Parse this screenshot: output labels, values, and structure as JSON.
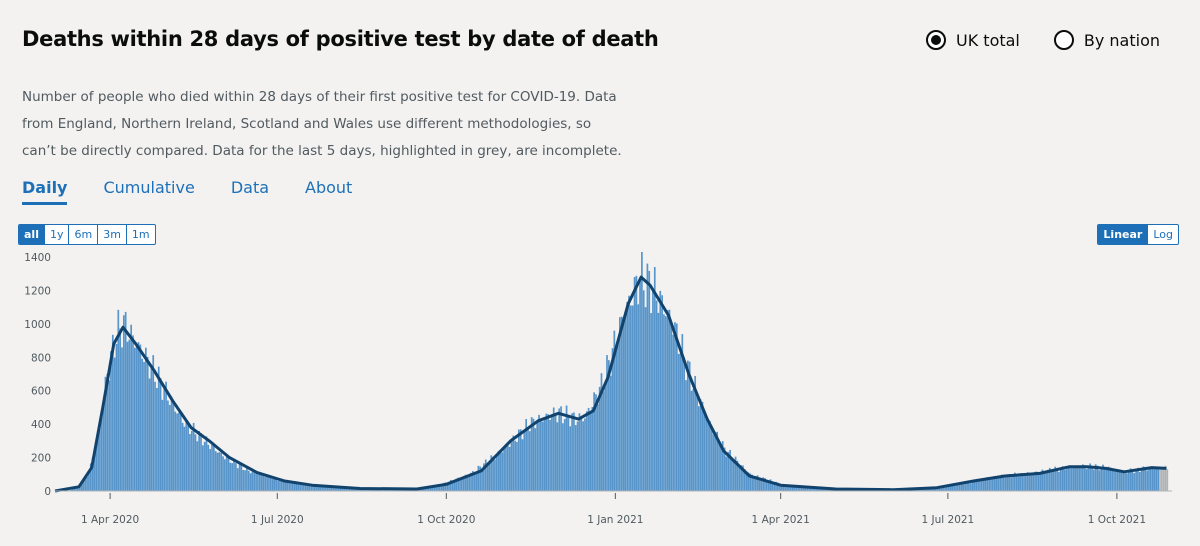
{
  "header": {
    "title": "Deaths within 28 days of positive test by date of death",
    "radios": [
      {
        "label": "UK total",
        "selected": true
      },
      {
        "label": "By nation",
        "selected": false
      }
    ]
  },
  "description": {
    "line1": "Number of people who died within 28 days of their first positive test for COVID-19. Data",
    "line2": "from England, Northern Ireland, Scotland and Wales use different methodologies, so",
    "line3": "can’t be directly compared. Data for the last 5 days, highlighted in grey, are incomplete."
  },
  "tabs": [
    {
      "label": "Daily",
      "active": true
    },
    {
      "label": "Cumulative",
      "active": false
    },
    {
      "label": "Data",
      "active": false
    },
    {
      "label": "About",
      "active": false
    }
  ],
  "range_buttons": [
    {
      "label": "all",
      "active": true
    },
    {
      "label": "1y",
      "active": false
    },
    {
      "label": "6m",
      "active": false
    },
    {
      "label": "3m",
      "active": false
    },
    {
      "label": "1m",
      "active": false
    }
  ],
  "scale_buttons": [
    {
      "label": "Linear",
      "active": true
    },
    {
      "label": "Log",
      "active": false
    }
  ],
  "colors": {
    "bar": "#5694ca",
    "line": "#12436d",
    "incomplete": "#b1b4b6",
    "accent": "#1d70b8"
  },
  "chart_data": {
    "type": "bar",
    "title": "",
    "xlabel": "",
    "ylabel": "",
    "ylim": [
      0,
      1400
    ],
    "y_ticks": [
      0,
      200,
      400,
      600,
      800,
      1000,
      1200,
      1400
    ],
    "x_range": [
      "2020-03-02",
      "2021-10-31"
    ],
    "x_ticks": [
      {
        "date": "2020-04-01",
        "label": "1 Apr 2020"
      },
      {
        "date": "2020-07-01",
        "label": "1 Jul 2020"
      },
      {
        "date": "2020-10-01",
        "label": "1 Oct 2020"
      },
      {
        "date": "2021-01-01",
        "label": "1 Jan 2021"
      },
      {
        "date": "2021-04-01",
        "label": "1 Apr 2021"
      },
      {
        "date": "2021-07-01",
        "label": "1 Jul 2021"
      },
      {
        "date": "2021-10-01",
        "label": "1 Oct 2021"
      }
    ],
    "grid": false,
    "incomplete_last_days": 5,
    "series": [
      {
        "type": "bar",
        "date_start": "2020-03-02",
        "date_end": "2021-10-28",
        "approx_points": [
          [
            "2020-03-02",
            0
          ],
          [
            "2020-03-10",
            5
          ],
          [
            "2020-03-15",
            30
          ],
          [
            "2020-03-20",
            110
          ],
          [
            "2020-03-25",
            330
          ],
          [
            "2020-03-30",
            700
          ],
          [
            "2020-04-04",
            940
          ],
          [
            "2020-04-08",
            1000
          ],
          [
            "2020-04-15",
            880
          ],
          [
            "2020-04-22",
            760
          ],
          [
            "2020-05-01",
            590
          ],
          [
            "2020-05-10",
            420
          ],
          [
            "2020-05-20",
            320
          ],
          [
            "2020-06-01",
            210
          ],
          [
            "2020-06-15",
            120
          ],
          [
            "2020-07-01",
            70
          ],
          [
            "2020-07-15",
            40
          ],
          [
            "2020-08-01",
            18
          ],
          [
            "2020-09-01",
            10
          ],
          [
            "2020-09-20",
            20
          ],
          [
            "2020-10-01",
            50
          ],
          [
            "2020-10-15",
            110
          ],
          [
            "2020-11-01",
            250
          ],
          [
            "2020-11-15",
            400
          ],
          [
            "2020-11-25",
            450
          ],
          [
            "2020-12-01",
            465
          ],
          [
            "2020-12-10",
            430
          ],
          [
            "2020-12-15",
            440
          ],
          [
            "2020-12-25",
            650
          ],
          [
            "2021-01-05",
            1050
          ],
          [
            "2021-01-14",
            1275
          ],
          [
            "2021-01-22",
            1200
          ],
          [
            "2021-02-01",
            1000
          ],
          [
            "2021-02-10",
            700
          ],
          [
            "2021-02-20",
            420
          ],
          [
            "2021-03-01",
            250
          ],
          [
            "2021-03-15",
            100
          ],
          [
            "2021-04-01",
            40
          ],
          [
            "2021-05-01",
            12
          ],
          [
            "2021-06-01",
            8
          ],
          [
            "2021-06-20",
            15
          ],
          [
            "2021-07-10",
            45
          ],
          [
            "2021-07-25",
            85
          ],
          [
            "2021-08-10",
            100
          ],
          [
            "2021-09-01",
            135
          ],
          [
            "2021-09-10",
            150
          ],
          [
            "2021-09-25",
            140
          ],
          [
            "2021-10-05",
            115
          ],
          [
            "2021-10-20",
            140
          ],
          [
            "2021-10-28",
            140
          ]
        ]
      },
      {
        "type": "line",
        "approx_points": [
          [
            "2020-03-02",
            0
          ],
          [
            "2020-03-15",
            25
          ],
          [
            "2020-03-22",
            140
          ],
          [
            "2020-03-28",
            500
          ],
          [
            "2020-04-03",
            880
          ],
          [
            "2020-04-08",
            980
          ],
          [
            "2020-04-15",
            880
          ],
          [
            "2020-04-25",
            720
          ],
          [
            "2020-05-05",
            540
          ],
          [
            "2020-05-15",
            380
          ],
          [
            "2020-05-25",
            300
          ],
          [
            "2020-06-05",
            200
          ],
          [
            "2020-06-20",
            110
          ],
          [
            "2020-07-05",
            60
          ],
          [
            "2020-07-20",
            35
          ],
          [
            "2020-08-15",
            15
          ],
          [
            "2020-09-15",
            12
          ],
          [
            "2020-10-01",
            40
          ],
          [
            "2020-10-20",
            120
          ],
          [
            "2020-11-05",
            300
          ],
          [
            "2020-11-20",
            420
          ],
          [
            "2020-12-01",
            465
          ],
          [
            "2020-12-12",
            430
          ],
          [
            "2020-12-20",
            480
          ],
          [
            "2020-12-28",
            680
          ],
          [
            "2021-01-08",
            1120
          ],
          [
            "2021-01-15",
            1280
          ],
          [
            "2021-01-20",
            1230
          ],
          [
            "2021-01-30",
            1050
          ],
          [
            "2021-02-10",
            700
          ],
          [
            "2021-02-20",
            430
          ],
          [
            "2021-03-01",
            240
          ],
          [
            "2021-03-15",
            90
          ],
          [
            "2021-04-01",
            35
          ],
          [
            "2021-05-01",
            12
          ],
          [
            "2021-06-01",
            8
          ],
          [
            "2021-06-25",
            20
          ],
          [
            "2021-07-15",
            60
          ],
          [
            "2021-08-01",
            90
          ],
          [
            "2021-08-20",
            105
          ],
          [
            "2021-09-05",
            145
          ],
          [
            "2021-09-15",
            145
          ],
          [
            "2021-09-25",
            135
          ],
          [
            "2021-10-05",
            115
          ],
          [
            "2021-10-20",
            140
          ],
          [
            "2021-10-28",
            135
          ]
        ]
      }
    ]
  }
}
